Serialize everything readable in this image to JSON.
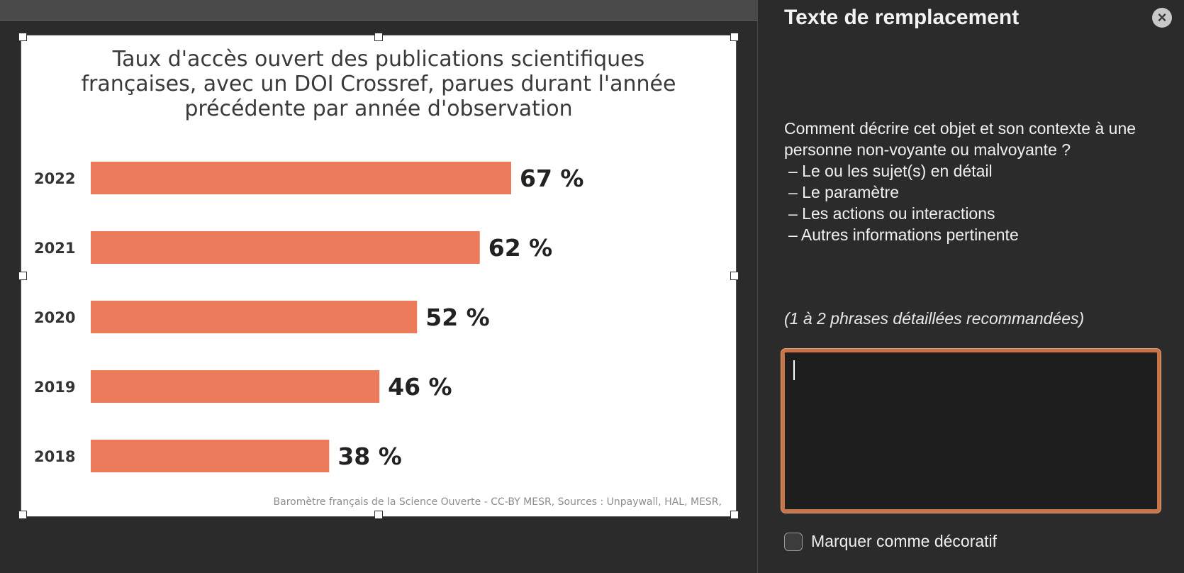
{
  "panel": {
    "title": "Texte de remplacement",
    "close_label": "×",
    "instructions": {
      "question": "Comment décrire cet objet et son contexte à une personne non-voyante ou malvoyante ?",
      "bullets": [
        "– Le ou les sujet(s) en détail",
        "– Le paramètre",
        "– Les actions ou interactions",
        "– Autres informations pertinente"
      ]
    },
    "hint": "(1 à 2 phrases détaillées recommandées)",
    "alt_text_value": "",
    "decorative_checkbox_label": "Marquer comme décoratif"
  },
  "chart_data": {
    "type": "bar",
    "orientation": "horizontal",
    "title_lines": [
      "Taux d'accès ouvert des publications scientifiques",
      "françaises, avec un DOI Crossref, parues durant l'année",
      "précédente par année d'observation"
    ],
    "categories": [
      "2022",
      "2021",
      "2020",
      "2019",
      "2018"
    ],
    "values": [
      67,
      62,
      52,
      46,
      38
    ],
    "value_labels": [
      "67 %",
      "62 %",
      "52 %",
      "46 %",
      "38 %"
    ],
    "xlim": [
      0,
      100
    ],
    "bar_color": "#ec7b5b",
    "source": "Baromètre français de la Science Ouverte - CC-BY MESR, Sources : Unpaywall, HAL, MESR,"
  }
}
